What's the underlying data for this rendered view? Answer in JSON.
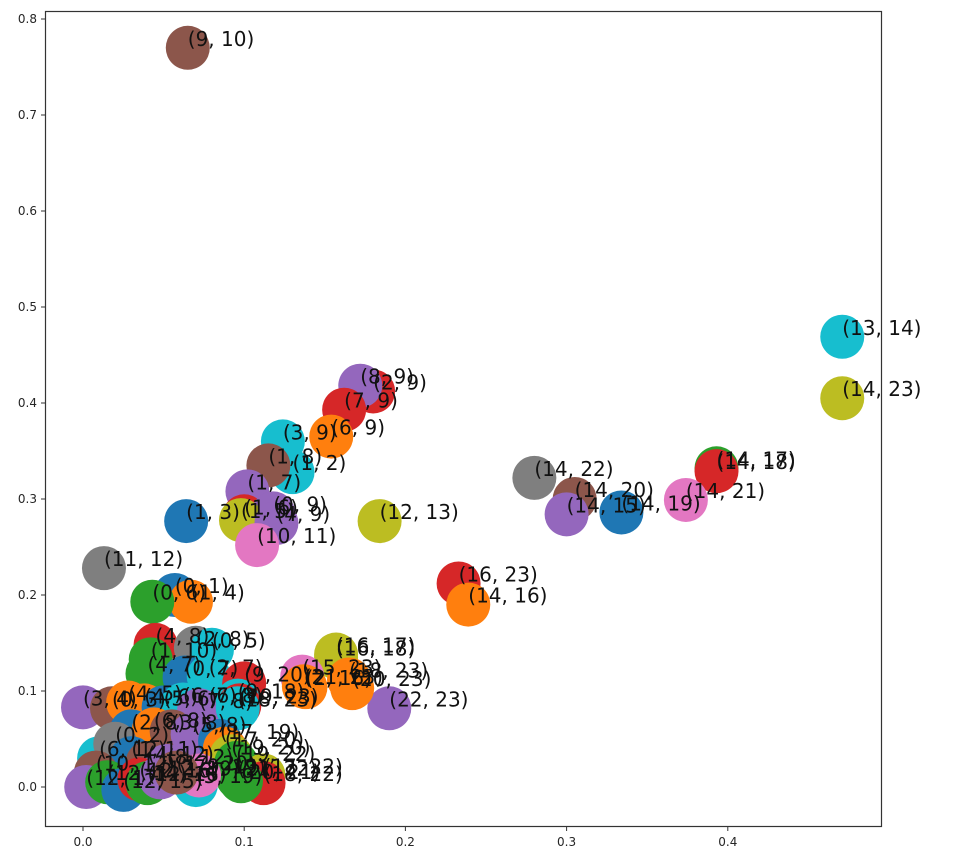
{
  "chart_data": {
    "type": "scatter",
    "title": "",
    "xlabel": "",
    "ylabel": "",
    "xlim": [
      -0.024,
      0.495
    ],
    "ylim": [
      -0.04,
      0.81
    ],
    "grid": false,
    "legend": null,
    "x_ticks": [
      0.0,
      0.1,
      0.2,
      0.3,
      0.4
    ],
    "x_tick_labels": [
      "0.0",
      "0.1",
      "0.2",
      "0.3",
      "0.4"
    ],
    "y_ticks": [
      0.0,
      0.1,
      0.2,
      0.3,
      0.4,
      0.5,
      0.6,
      0.7,
      0.8
    ],
    "y_tick_labels": [
      "0.0",
      "0.1",
      "0.2",
      "0.3",
      "0.4",
      "0.5",
      "0.6",
      "0.7",
      "0.8"
    ],
    "marker_radius_px": 22,
    "points": [
      {
        "label": "(9, 10)",
        "x": 0.065,
        "y": 0.77,
        "color": "#8c564b"
      },
      {
        "label": "(13, 14)",
        "x": 0.471,
        "y": 0.469,
        "color": "#17becf"
      },
      {
        "label": "(14, 23)",
        "x": 0.471,
        "y": 0.405,
        "color": "#bcbd22"
      },
      {
        "label": "(14, 17)",
        "x": 0.393,
        "y": 0.332,
        "color": "#2ca02c"
      },
      {
        "label": "(14, 18)",
        "x": 0.393,
        "y": 0.329,
        "color": "#d62728"
      },
      {
        "label": "(14, 21)",
        "x": 0.374,
        "y": 0.299,
        "color": "#e377c2"
      },
      {
        "label": "(14, 19)",
        "x": 0.334,
        "y": 0.286,
        "color": "#1f77b4"
      },
      {
        "label": "(14, 22)",
        "x": 0.28,
        "y": 0.322,
        "color": "#7f7f7f"
      },
      {
        "label": "(14, 20)",
        "x": 0.305,
        "y": 0.3,
        "color": "#8c564b"
      },
      {
        "label": "(14, 15)",
        "x": 0.3,
        "y": 0.284,
        "color": "#9467bd"
      },
      {
        "label": "(16, 23)",
        "x": 0.233,
        "y": 0.212,
        "color": "#d62728"
      },
      {
        "label": "(14, 16)",
        "x": 0.239,
        "y": 0.19,
        "color": "#ff7f0e"
      },
      {
        "label": "(22, 23)",
        "x": 0.19,
        "y": 0.082,
        "color": "#9467bd"
      },
      {
        "label": "(12, 13)",
        "x": 0.184,
        "y": 0.277,
        "color": "#bcbd22"
      },
      {
        "label": "(2, 9)",
        "x": 0.18,
        "y": 0.412,
        "color": "#d62728"
      },
      {
        "label": "(8, 9)",
        "x": 0.172,
        "y": 0.418,
        "color": "#9467bd"
      },
      {
        "label": "(7, 9)",
        "x": 0.162,
        "y": 0.393,
        "color": "#d62728"
      },
      {
        "label": "(6, 9)",
        "x": 0.154,
        "y": 0.365,
        "color": "#ff7f0e"
      },
      {
        "label": "(3, 9)",
        "x": 0.124,
        "y": 0.36,
        "color": "#17becf"
      },
      {
        "label": "(1, 2)",
        "x": 0.13,
        "y": 0.328,
        "color": "#17becf"
      },
      {
        "label": "(1, 8)",
        "x": 0.115,
        "y": 0.335,
        "color": "#8c564b"
      },
      {
        "label": "(1, 7)",
        "x": 0.102,
        "y": 0.308,
        "color": "#9467bd"
      },
      {
        "label": "(1, 6)",
        "x": 0.1,
        "y": 0.282,
        "color": "#d62728"
      },
      {
        "label": "(0, 9)",
        "x": 0.118,
        "y": 0.285,
        "color": "#9467bd"
      },
      {
        "label": "(1, 5)",
        "x": 0.098,
        "y": 0.278,
        "color": "#bcbd22"
      },
      {
        "label": "(4, 9)",
        "x": 0.12,
        "y": 0.275,
        "color": "#9467bd"
      },
      {
        "label": "(1, 3)",
        "x": 0.064,
        "y": 0.277,
        "color": "#1f77b4"
      },
      {
        "label": "(10, 11)",
        "x": 0.108,
        "y": 0.252,
        "color": "#e377c2"
      },
      {
        "label": "(11, 12)",
        "x": 0.013,
        "y": 0.228,
        "color": "#7f7f7f"
      },
      {
        "label": "(0, 1)",
        "x": 0.057,
        "y": 0.2,
        "color": "#1f77b4"
      },
      {
        "label": "(1, 4)",
        "x": 0.067,
        "y": 0.193,
        "color": "#ff7f0e"
      },
      {
        "label": "(0, 6)",
        "x": 0.043,
        "y": 0.193,
        "color": "#2ca02c"
      },
      {
        "label": "(16, 17)",
        "x": 0.157,
        "y": 0.138,
        "color": "#bcbd22"
      },
      {
        "label": "(16, 18)",
        "x": 0.157,
        "y": 0.135,
        "color": "#bcbd22"
      },
      {
        "label": "(15, 23)",
        "x": 0.136,
        "y": 0.115,
        "color": "#e377c2"
      },
      {
        "label": "(18, 23)",
        "x": 0.165,
        "y": 0.112,
        "color": "#ff7f0e"
      },
      {
        "label": "(21, 23)",
        "x": 0.137,
        "y": 0.105,
        "color": "#ff7f0e"
      },
      {
        "label": "(20, 23)",
        "x": 0.167,
        "y": 0.103,
        "color": "#ff7f0e"
      },
      {
        "label": "(2, 16)",
        "x": 0.138,
        "y": 0.104,
        "color": "#ff7f0e"
      },
      {
        "label": "(4, 8)",
        "x": 0.045,
        "y": 0.148,
        "color": "#d62728"
      },
      {
        "label": "(2, 8)",
        "x": 0.07,
        "y": 0.145,
        "color": "#7f7f7f"
      },
      {
        "label": "(0, 5)",
        "x": 0.08,
        "y": 0.143,
        "color": "#17becf"
      },
      {
        "label": "(1, 10)",
        "x": 0.042,
        "y": 0.133,
        "color": "#2ca02c"
      },
      {
        "label": "(4, 7)",
        "x": 0.04,
        "y": 0.118,
        "color": "#2ca02c"
      },
      {
        "label": "(0, 7)",
        "x": 0.063,
        "y": 0.114,
        "color": "#1f77b4"
      },
      {
        "label": "(2, 7)",
        "x": 0.078,
        "y": 0.115,
        "color": "#17becf"
      },
      {
        "label": "(9, 20)",
        "x": 0.1,
        "y": 0.108,
        "color": "#d62728"
      },
      {
        "label": "(3, 4)",
        "x": 0.0,
        "y": 0.083,
        "color": "#9467bd"
      },
      {
        "label": "(0, 3)",
        "x": 0.018,
        "y": 0.082,
        "color": "#8c564b"
      },
      {
        "label": "(4, 5)",
        "x": 0.028,
        "y": 0.088,
        "color": "#ff7f0e"
      },
      {
        "label": "(4, 6)",
        "x": 0.038,
        "y": 0.085,
        "color": "#ff7f0e"
      },
      {
        "label": "(5, 6)",
        "x": 0.05,
        "y": 0.083,
        "color": "#1f77b4"
      },
      {
        "label": "(6, 7)",
        "x": 0.062,
        "y": 0.086,
        "color": "#17becf"
      },
      {
        "label": "(6, 8)",
        "x": 0.078,
        "y": 0.086,
        "color": "#17becf"
      },
      {
        "label": "(7, 8)",
        "x": 0.072,
        "y": 0.08,
        "color": "#9467bd"
      },
      {
        "label": "(9, 18)",
        "x": 0.096,
        "y": 0.09,
        "color": "#17becf"
      },
      {
        "label": "(19, 23)",
        "x": 0.097,
        "y": 0.085,
        "color": "#d62728"
      },
      {
        "label": "(18, 23)",
        "x": 0.096,
        "y": 0.082,
        "color": "#17becf"
      },
      {
        "label": "(2, 8)",
        "x": 0.03,
        "y": 0.058,
        "color": "#1f77b4"
      },
      {
        "label": "(6, 8)",
        "x": 0.044,
        "y": 0.06,
        "color": "#ff7f0e"
      },
      {
        "label": "(3, 8)",
        "x": 0.055,
        "y": 0.058,
        "color": "#8c564b"
      },
      {
        "label": "(5, 8)",
        "x": 0.068,
        "y": 0.055,
        "color": "#9467bd"
      },
      {
        "label": "(17, 19)",
        "x": 0.085,
        "y": 0.048,
        "color": "#1f77b4"
      },
      {
        "label": "(17, 20)",
        "x": 0.088,
        "y": 0.04,
        "color": "#ff7f0e"
      },
      {
        "label": "(19, 20)",
        "x": 0.092,
        "y": 0.032,
        "color": "#bcbd22"
      },
      {
        "label": "(19, 22)",
        "x": 0.095,
        "y": 0.025,
        "color": "#2ca02c"
      },
      {
        "label": "(17, 22)",
        "x": 0.112,
        "y": 0.012,
        "color": "#bcbd22"
      },
      {
        "label": "(18, 22)",
        "x": 0.112,
        "y": 0.004,
        "color": "#d62728"
      },
      {
        "label": "(21, 22)",
        "x": 0.096,
        "y": 0.01,
        "color": "#2ca02c"
      },
      {
        "label": "(20, 21)",
        "x": 0.098,
        "y": 0.006,
        "color": "#2ca02c"
      },
      {
        "label": "(5, 19)",
        "x": 0.07,
        "y": 0.002,
        "color": "#17becf"
      },
      {
        "label": "(9, 19)",
        "x": 0.072,
        "y": 0.012,
        "color": "#e377c2"
      },
      {
        "label": "(6, 12)",
        "x": 0.01,
        "y": 0.03,
        "color": "#17becf"
      },
      {
        "label": "(0, 2)",
        "x": 0.02,
        "y": 0.045,
        "color": "#7f7f7f"
      },
      {
        "label": "(1, 11)",
        "x": 0.03,
        "y": 0.03,
        "color": "#1f77b4"
      },
      {
        "label": "(4, 12)",
        "x": 0.04,
        "y": 0.025,
        "color": "#8c564b"
      },
      {
        "label": "(8, 12)",
        "x": 0.052,
        "y": 0.022,
        "color": "#9467bd"
      },
      {
        "label": "(10, 12)",
        "x": 0.008,
        "y": 0.015,
        "color": "#8c564b"
      },
      {
        "label": "(12, 17)",
        "x": 0.002,
        "y": 0.0,
        "color": "#9467bd"
      },
      {
        "label": "(12, 14)",
        "x": 0.015,
        "y": 0.005,
        "color": "#2ca02c"
      },
      {
        "label": "(12, 15)",
        "x": 0.025,
        "y": -0.003,
        "color": "#1f77b4"
      },
      {
        "label": "(12, 16)",
        "x": 0.035,
        "y": 0.008,
        "color": "#d62728"
      },
      {
        "label": "(12, 18)",
        "x": 0.04,
        "y": 0.004,
        "color": "#2ca02c"
      },
      {
        "label": "(12, 19)",
        "x": 0.048,
        "y": 0.01,
        "color": "#9467bd"
      },
      {
        "label": "(12, 20)",
        "x": 0.058,
        "y": 0.015,
        "color": "#8c564b"
      }
    ]
  }
}
